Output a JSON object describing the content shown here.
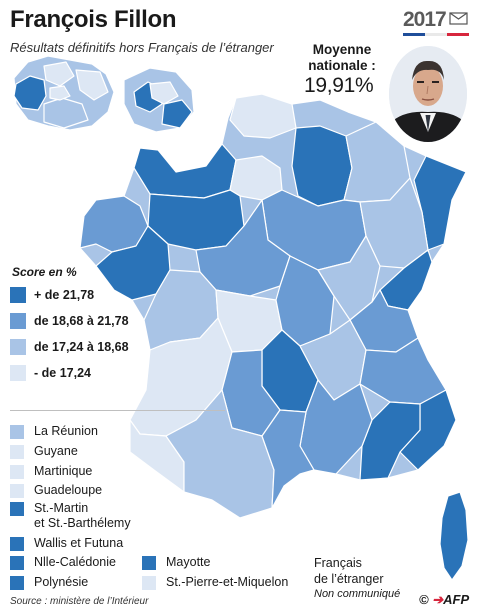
{
  "header": {
    "title": "François Fillon",
    "subtitle": "Résultats définitifs hors Français de l’étranger",
    "year": "2017"
  },
  "national": {
    "label_line1": "Moyenne",
    "label_line2": "nationale :",
    "value": "19,91%"
  },
  "legend": {
    "title": "Score en %",
    "items": [
      {
        "label": "+ de 21,78",
        "color": "#2a73b8"
      },
      {
        "label": "de 18,68 à 21,78",
        "color": "#6a9bd3"
      },
      {
        "label": "de 17,24 à 18,68",
        "color": "#a9c4e6"
      },
      {
        "label": "- de 17,24",
        "color": "#dde7f4"
      }
    ]
  },
  "territories": [
    {
      "label": "La Réunion",
      "color": "#a9c4e6"
    },
    {
      "label": "Guyane",
      "color": "#dde7f4"
    },
    {
      "label": "Martinique",
      "color": "#dde7f4"
    },
    {
      "label": "Guadeloupe",
      "color": "#dde7f4"
    },
    {
      "label_line1": "St.-Martin",
      "label_line2": "et St.-Barthélemy",
      "color": "#2a73b8"
    },
    {
      "label": "Wallis et Futuna",
      "color": "#2a73b8"
    },
    {
      "label": "Nlle-Calédonie",
      "color": "#2a73b8"
    },
    {
      "label": "Polynésie",
      "color": "#2a73b8"
    },
    {
      "label": "Mayotte",
      "color": "#2a73b8"
    },
    {
      "label": "St.-Pierre-et-Miquelon",
      "color": "#dde7f4"
    }
  ],
  "foreign": {
    "line1": "Français",
    "line2": "de l’étranger",
    "line3": "Non communiqué"
  },
  "source": "Source : ministère de l’Intérieur",
  "credit": "AFP",
  "colors": {
    "dark": "#2a73b8",
    "medium": "#6a9bd3",
    "light": "#a9c4e6",
    "pale": "#dde7f4",
    "border": "#ffffff"
  }
}
